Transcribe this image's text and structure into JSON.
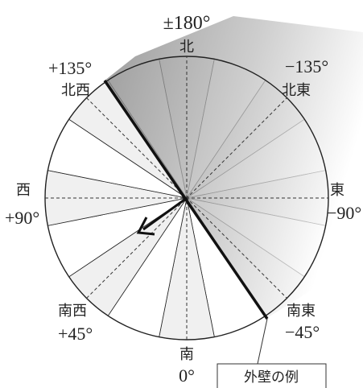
{
  "angles": {
    "top": "±180°",
    "upper_left": "+135°",
    "upper_right": "−135°",
    "left": "+90°",
    "right": "−90°",
    "lower_left": "+45°",
    "lower_right": "−45°",
    "bottom": "0°"
  },
  "directions": {
    "north": "北",
    "northwest": "北西",
    "northeast": "北東",
    "west": "西",
    "east": "東",
    "southwest": "南西",
    "southeast": "南東",
    "south": "南"
  },
  "callout": {
    "label": "外壁の例"
  },
  "colors": {
    "sector_light": "#f0f0f0",
    "sector_white": "#ffffff",
    "shade_dark": "#888888",
    "stroke": "#222222"
  }
}
